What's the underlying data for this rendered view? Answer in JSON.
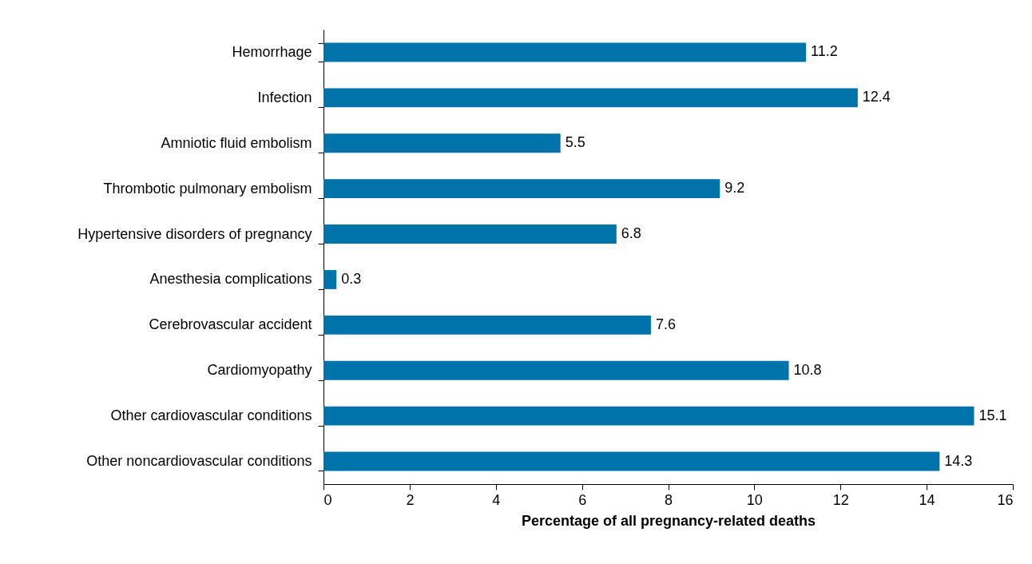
{
  "chart_data": {
    "type": "bar",
    "orientation": "horizontal",
    "xlabel": "Percentage of all pregnancy-related deaths",
    "categories": [
      "Hemorrhage",
      "Infection",
      "Amniotic fluid embolism",
      "Thrombotic pulmonary embolism",
      "Hypertensive disorders of pregnancy",
      "Anesthesia complications",
      "Cerebrovascular accident",
      "Cardiomyopathy",
      "Other cardiovascular conditions",
      "Other noncardiovascular conditions"
    ],
    "values": [
      11.2,
      12.4,
      5.5,
      9.2,
      6.8,
      0.3,
      7.6,
      10.8,
      15.1,
      14.3
    ],
    "color": "#0073aa",
    "xlim": [
      0,
      16
    ],
    "xticks": [
      0,
      2,
      4,
      6,
      8,
      10,
      12,
      14,
      16
    ],
    "grid": false,
    "data_labels": true
  }
}
